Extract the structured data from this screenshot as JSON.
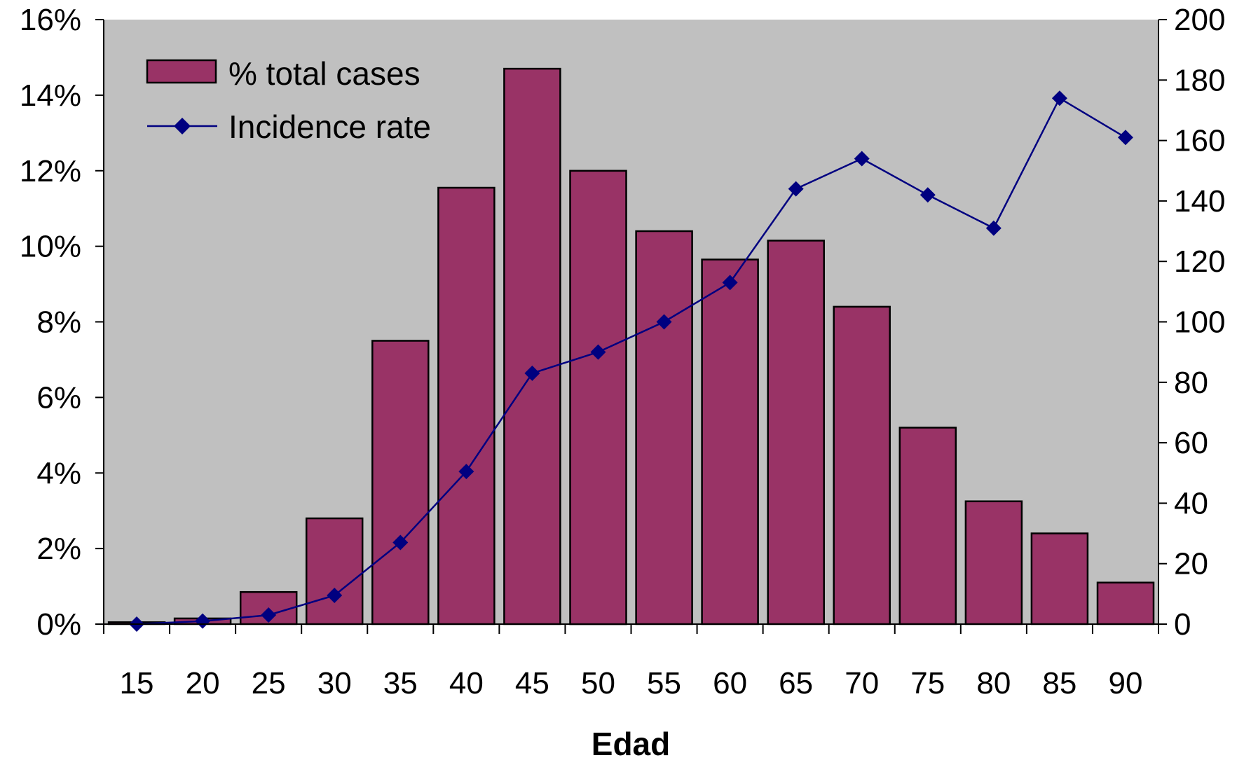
{
  "chart_data": {
    "type": "bar",
    "title": "",
    "xlabel": "Edad",
    "ylabel": "",
    "y2label": "",
    "categories": [
      "15",
      "20",
      "25",
      "30",
      "35",
      "40",
      "45",
      "50",
      "55",
      "60",
      "65",
      "70",
      "75",
      "80",
      "85",
      "90"
    ],
    "series": [
      {
        "name": "% total cases",
        "type": "bar",
        "axis": "left",
        "color": "#993366",
        "values": [
          0.05,
          0.15,
          0.85,
          2.8,
          7.5,
          11.55,
          14.7,
          12.0,
          10.4,
          9.65,
          10.15,
          8.4,
          5.2,
          3.25,
          2.4,
          1.1
        ]
      },
      {
        "name": "Incidence rate",
        "type": "line",
        "axis": "right",
        "color": "#000080",
        "values": [
          0,
          1,
          3,
          9.5,
          27,
          50.5,
          83,
          90,
          100,
          113,
          144,
          154,
          142,
          131,
          174,
          161
        ]
      }
    ],
    "ylim": [
      0,
      16
    ],
    "y_unit": "%",
    "yticks": [
      "0%",
      "2%",
      "4%",
      "6%",
      "8%",
      "10%",
      "12%",
      "14%",
      "16%"
    ],
    "y2lim": [
      0,
      200
    ],
    "y2ticks": [
      "0",
      "20",
      "40",
      "60",
      "80",
      "100",
      "120",
      "140",
      "160",
      "180",
      "200"
    ],
    "plot_background": "#c0c0c0",
    "grid": false,
    "legend_position": "top-left"
  }
}
